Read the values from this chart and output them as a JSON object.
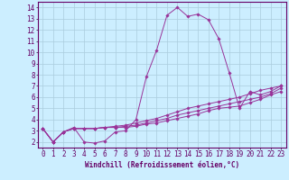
{
  "xlabel": "Windchill (Refroidissement éolien,°C)",
  "bg_color": "#cceeff",
  "grid_color": "#aaccdd",
  "line_color": "#993399",
  "xlim": [
    -0.5,
    23.5
  ],
  "ylim": [
    1.5,
    14.5
  ],
  "xticks": [
    0,
    1,
    2,
    3,
    4,
    5,
    6,
    7,
    8,
    9,
    10,
    11,
    12,
    13,
    14,
    15,
    16,
    17,
    18,
    19,
    20,
    21,
    22,
    23
  ],
  "yticks": [
    2,
    3,
    4,
    5,
    6,
    7,
    8,
    9,
    10,
    11,
    12,
    13,
    14
  ],
  "series": [
    [
      3.2,
      2.0,
      2.9,
      3.3,
      2.0,
      1.9,
      2.1,
      2.9,
      3.0,
      4.0,
      7.8,
      10.2,
      13.3,
      14.0,
      13.2,
      13.4,
      12.9,
      11.2,
      8.2,
      5.0,
      6.5,
      6.2,
      6.5,
      7.0
    ],
    [
      3.2,
      2.0,
      2.9,
      3.2,
      3.2,
      3.2,
      3.3,
      3.3,
      3.3,
      3.4,
      3.6,
      3.7,
      3.9,
      4.1,
      4.3,
      4.5,
      4.8,
      5.0,
      5.1,
      5.2,
      5.5,
      5.8,
      6.2,
      6.5
    ],
    [
      3.2,
      2.0,
      2.9,
      3.2,
      3.2,
      3.2,
      3.3,
      3.3,
      3.4,
      3.5,
      3.7,
      3.9,
      4.1,
      4.4,
      4.6,
      4.8,
      5.0,
      5.2,
      5.4,
      5.6,
      5.8,
      6.0,
      6.3,
      6.8
    ],
    [
      3.2,
      2.0,
      2.9,
      3.2,
      3.2,
      3.2,
      3.3,
      3.4,
      3.5,
      3.7,
      3.9,
      4.1,
      4.4,
      4.7,
      5.0,
      5.2,
      5.4,
      5.6,
      5.8,
      6.0,
      6.3,
      6.6,
      6.8,
      7.0
    ]
  ],
  "xlabel_fontsize": 5.5,
  "tick_fontsize": 5.5,
  "linewidth": 0.7,
  "markersize": 1.8
}
